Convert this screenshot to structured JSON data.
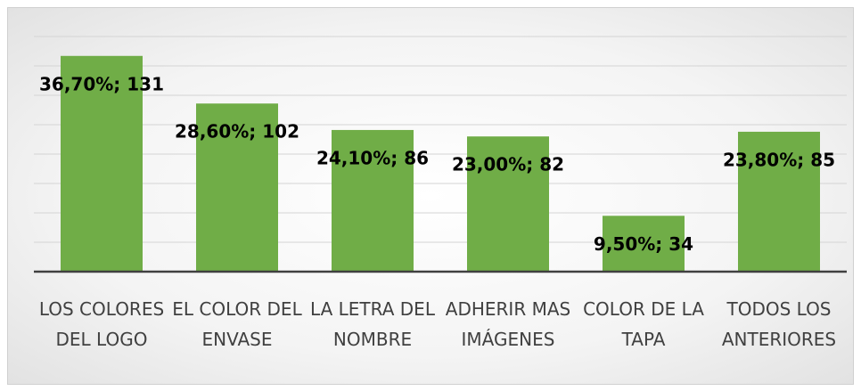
{
  "chart_data": {
    "type": "bar",
    "categories": [
      "LOS COLORES DEL LOGO",
      "EL COLOR DEL ENVASE",
      "LA LETRA DEL NOMBRE",
      "ADHERIR MAS IMÁGENES",
      "COLOR DE LA TAPA",
      "TODOS LOS ANTERIORES"
    ],
    "values": [
      36.7,
      28.6,
      24.1,
      23.0,
      9.5,
      23.8
    ],
    "value_labels": [
      "36,70%; 131",
      "28,60%; 102",
      "24,10%; 86",
      "23,00%; 82",
      "9,50%; 34",
      "23,80%; 85"
    ],
    "color": "#70ad47",
    "ylim": [
      0,
      40
    ],
    "yticks": [
      0,
      5,
      10,
      15,
      20,
      25,
      30,
      35,
      40
    ],
    "grid": true
  }
}
